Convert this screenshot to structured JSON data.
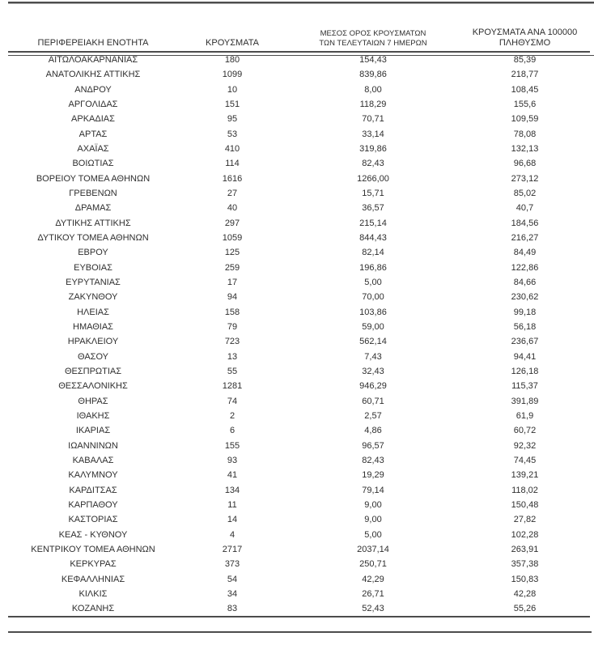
{
  "table": {
    "columns": [
      {
        "label": "ΠΕΡΙΦΕΡΕΙΑΚΗ ΕΝΟΤΗΤΑ"
      },
      {
        "label": "ΚΡΟΥΣΜΑΤΑ"
      },
      {
        "label": "ΜΕΣΟΣ ΟΡΟΣ ΚΡΟΥΣΜΑΤΩΝ ΤΩΝ ΤΕΛΕΥΤΑΙΩΝ 7 ΗΜΕΡΩΝ",
        "line1": "ΜΕΣΟΣ ΟΡΟΣ ΚΡΟΥΣΜΑΤΩΝ",
        "line2": "ΤΩΝ ΤΕΛΕΥΤΑΙΩΝ 7 ΗΜΕΡΩΝ"
      },
      {
        "label": "ΚΡΟΥΣΜΑΤΑ ΑΝΑ 100000 ΠΛΗΘΥΣΜΟ",
        "line1": "ΚΡΟΥΣΜΑΤΑ ΑΝΑ 100000",
        "line2": "ΠΛΗΘΥΣΜΟ"
      }
    ],
    "rows": [
      [
        "ΑΙΤΩΛΟΑΚΑΡΝΑΝΙΑΣ",
        "180",
        "154,43",
        "85,39"
      ],
      [
        "ΑΝΑΤΟΛΙΚΗΣ ΑΤΤΙΚΗΣ",
        "1099",
        "839,86",
        "218,77"
      ],
      [
        "ΑΝΔΡΟΥ",
        "10",
        "8,00",
        "108,45"
      ],
      [
        "ΑΡΓΟΛΙΔΑΣ",
        "151",
        "118,29",
        "155,6"
      ],
      [
        "ΑΡΚΑΔΙΑΣ",
        "95",
        "70,71",
        "109,59"
      ],
      [
        "ΑΡΤΑΣ",
        "53",
        "33,14",
        "78,08"
      ],
      [
        "ΑΧΑΪΑΣ",
        "410",
        "319,86",
        "132,13"
      ],
      [
        "ΒΟΙΩΤΙΑΣ",
        "114",
        "82,43",
        "96,68"
      ],
      [
        "ΒΟΡΕΙΟΥ ΤΟΜΕΑ ΑΘΗΝΩΝ",
        "1616",
        "1266,00",
        "273,12"
      ],
      [
        "ΓΡΕΒΕΝΩΝ",
        "27",
        "15,71",
        "85,02"
      ],
      [
        "ΔΡΑΜΑΣ",
        "40",
        "36,57",
        "40,7"
      ],
      [
        "ΔΥΤΙΚΗΣ ΑΤΤΙΚΗΣ",
        "297",
        "215,14",
        "184,56"
      ],
      [
        "ΔΥΤΙΚΟΥ ΤΟΜΕΑ ΑΘΗΝΩΝ",
        "1059",
        "844,43",
        "216,27"
      ],
      [
        "ΕΒΡΟΥ",
        "125",
        "82,14",
        "84,49"
      ],
      [
        "ΕΥΒΟΙΑΣ",
        "259",
        "196,86",
        "122,86"
      ],
      [
        "ΕΥΡΥΤΑΝΙΑΣ",
        "17",
        "5,00",
        "84,66"
      ],
      [
        "ΖΑΚΥΝΘΟΥ",
        "94",
        "70,00",
        "230,62"
      ],
      [
        "ΗΛΕΙΑΣ",
        "158",
        "103,86",
        "99,18"
      ],
      [
        "ΗΜΑΘΙΑΣ",
        "79",
        "59,00",
        "56,18"
      ],
      [
        "ΗΡΑΚΛΕΙΟΥ",
        "723",
        "562,14",
        "236,67"
      ],
      [
        "ΘΑΣΟΥ",
        "13",
        "7,43",
        "94,41"
      ],
      [
        "ΘΕΣΠΡΩΤΙΑΣ",
        "55",
        "32,43",
        "126,18"
      ],
      [
        "ΘΕΣΣΑΛΟΝΙΚΗΣ",
        "1281",
        "946,29",
        "115,37"
      ],
      [
        "ΘΗΡΑΣ",
        "74",
        "60,71",
        "391,89"
      ],
      [
        "ΙΘΑΚΗΣ",
        "2",
        "2,57",
        "61,9"
      ],
      [
        "ΙΚΑΡΙΑΣ",
        "6",
        "4,86",
        "60,72"
      ],
      [
        "ΙΩΑΝΝΙΝΩΝ",
        "155",
        "96,57",
        "92,32"
      ],
      [
        "ΚΑΒΑΛΑΣ",
        "93",
        "82,43",
        "74,45"
      ],
      [
        "ΚΑΛΥΜΝΟΥ",
        "41",
        "19,29",
        "139,21"
      ],
      [
        "ΚΑΡΔΙΤΣΑΣ",
        "134",
        "79,14",
        "118,02"
      ],
      [
        "ΚΑΡΠΑΘΟΥ",
        "11",
        "9,00",
        "150,48"
      ],
      [
        "ΚΑΣΤΟΡΙΑΣ",
        "14",
        "9,00",
        "27,82"
      ],
      [
        "ΚΕΑΣ - ΚΥΘΝΟΥ",
        "4",
        "5,00",
        "102,28"
      ],
      [
        "ΚΕΝΤΡΙΚΟΥ ΤΟΜΕΑ ΑΘΗΝΩΝ",
        "2717",
        "2037,14",
        "263,91"
      ],
      [
        "ΚΕΡΚΥΡΑΣ",
        "373",
        "250,71",
        "357,38"
      ],
      [
        "ΚΕΦΑΛΛΗΝΙΑΣ",
        "54",
        "42,29",
        "150,83"
      ],
      [
        "ΚΙΛΚΙΣ",
        "34",
        "26,71",
        "42,28"
      ],
      [
        "ΚΟΖΑΝΗΣ",
        "83",
        "52,43",
        "55,26"
      ]
    ],
    "colors": {
      "rule": "#4c4c4c",
      "text": "#2f2f2f",
      "background": "#ffffff"
    }
  }
}
